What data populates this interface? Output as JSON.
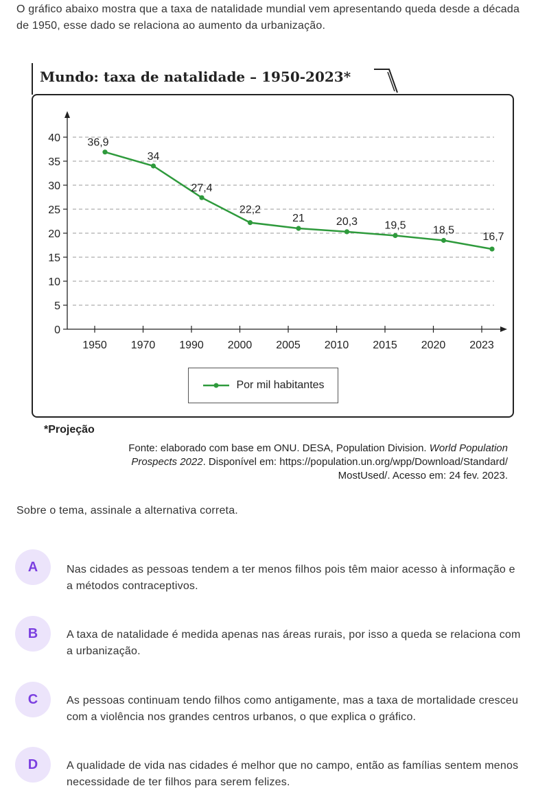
{
  "intro_text": "O gráfico abaixo mostra que a taxa de natalidade mundial vem apresentando queda desde a década de 1950, esse dado se relaciona ao aumento da urbanização.",
  "chart_title": "Mundo: taxa de natalidade – 1950-2023*",
  "chart_data": {
    "type": "line",
    "title": "Mundo: taxa de natalidade – 1950-2023*",
    "categories": [
      "1950",
      "1970",
      "1990",
      "2000",
      "2005",
      "2010",
      "2015",
      "2020",
      "2023"
    ],
    "series": [
      {
        "name": "Por mil habitantes",
        "values": [
          36.9,
          34,
          27.4,
          22.2,
          21,
          20.3,
          19.5,
          18.5,
          16.7
        ]
      }
    ],
    "data_labels": [
      "36,9",
      "34",
      "27,4",
      "22,2",
      "21",
      "20,3",
      "19,5",
      "18,5",
      "16,7"
    ],
    "yticks": [
      "0",
      "5",
      "10",
      "15",
      "20",
      "25",
      "30",
      "35",
      "40"
    ],
    "ylim": [
      0,
      40
    ],
    "grid": true,
    "legend": "bottom-center",
    "line_color": "#2e9a3c",
    "marker_color": "#2e9a3c"
  },
  "legend_label": "Por mil habitantes",
  "projection_note": "*Projeção",
  "source": {
    "part1": "Fonte: elaborado com base em ONU. DESA, Population Division. ",
    "italic1": "World Population Prospects 2022",
    "part2": ". Disponível em: https://population.un.org/wpp/Download/Standard/ MostUsed/. Acesso em: 24 fev. 2023."
  },
  "question": "Sobre o tema, assinale a alternativa correta.",
  "options": [
    {
      "letter": "A",
      "text": "Nas cidades as pessoas tendem a ter menos filhos pois têm maior acesso à informação e a métodos contraceptivos."
    },
    {
      "letter": "B",
      "text": "A taxa de natalidade é medida apenas nas áreas rurais, por isso a queda se relaciona com a urbanização."
    },
    {
      "letter": "C",
      "text": "As pessoas continuam tendo filhos como antigamente, mas a taxa de mortalidade cresceu com a violência nos grandes centros urbanos, o que explica o gráfico."
    },
    {
      "letter": "D",
      "text": "A qualidade de vida nas cidades é melhor que no campo, então as famílias sentem menos necessidade de ter filhos para serem felizes."
    }
  ],
  "colors": {
    "badge_bg": "#ece4fb",
    "badge_fg": "#7b3fe0",
    "line": "#2e9a3c"
  }
}
